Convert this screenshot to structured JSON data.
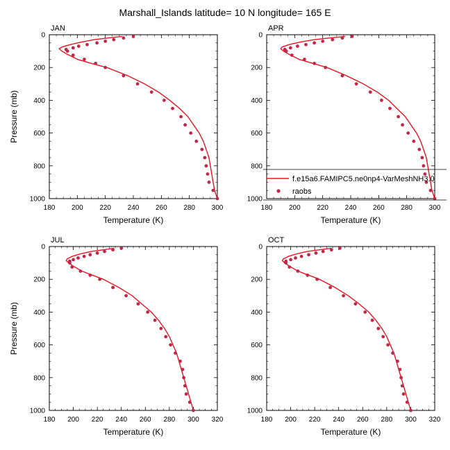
{
  "figure_title": "Marshall_Islands  latitude= 10 N longitude= 165 E",
  "legend": {
    "model_label": "f.e15a6.FAMIPC5.ne0np4-VarMeshNH3.0",
    "obs_label": "raobs"
  },
  "colors": {
    "model_line": "#e8141e",
    "obs_marker": "#c0284a"
  },
  "chart_data": [
    {
      "type": "line",
      "title": "JAN",
      "xlabel": "Temperature (K)",
      "ylabel": "Pressure (mb)",
      "xlim": [
        180,
        300
      ],
      "ylim": [
        1000,
        0
      ],
      "xticks": [
        180,
        200,
        220,
        240,
        260,
        280,
        300
      ],
      "yticks": [
        0,
        200,
        400,
        600,
        800,
        1000
      ],
      "series": [
        {
          "name": "f.e15a6.FAMIPC5.ne0np4-VarMeshNH3.0",
          "kind": "line",
          "points": [
            [
              232,
              10
            ],
            [
              222,
              20
            ],
            [
              212,
              30
            ],
            [
              203,
              45
            ],
            [
              195,
              60
            ],
            [
              189,
              75
            ],
            [
              187,
              85
            ],
            [
              189,
              100
            ],
            [
              193,
              120
            ],
            [
              200,
              150
            ],
            [
              210,
              175
            ],
            [
              221,
              200
            ],
            [
              236,
              250
            ],
            [
              248,
              300
            ],
            [
              258,
              350
            ],
            [
              266,
              400
            ],
            [
              273,
              450
            ],
            [
              279,
              500
            ],
            [
              283,
              550
            ],
            [
              287,
              600
            ],
            [
              290,
              650
            ],
            [
              292,
              700
            ],
            [
              294,
              750
            ],
            [
              296,
              850
            ],
            [
              297,
              900
            ],
            [
              298,
              950
            ],
            [
              300,
              1000
            ]
          ]
        },
        {
          "name": "raobs",
          "kind": "points",
          "points": [
            [
              240,
              10
            ],
            [
              233,
              20
            ],
            [
              226,
              30
            ],
            [
              220,
              40
            ],
            [
              214,
              50
            ],
            [
              207,
              60
            ],
            [
              201,
              70
            ],
            [
              197,
              80
            ],
            [
              192,
              90
            ],
            [
              193,
              100
            ],
            [
              197,
              125
            ],
            [
              205,
              150
            ],
            [
              213,
              175
            ],
            [
              220,
              200
            ],
            [
              233,
              250
            ],
            [
              243,
              300
            ],
            [
              253,
              350
            ],
            [
              262,
              400
            ],
            [
              268,
              450
            ],
            [
              274,
              500
            ],
            [
              277,
              550
            ],
            [
              281,
              600
            ],
            [
              285,
              650
            ],
            [
              289,
              700
            ],
            [
              291,
              750
            ],
            [
              292,
              800
            ],
            [
              293,
              850
            ],
            [
              294,
              900
            ],
            [
              297,
              950
            ],
            [
              300,
              1000
            ]
          ]
        }
      ]
    },
    {
      "type": "line",
      "title": "APR",
      "xlabel": "Temperature (K)",
      "ylabel": "",
      "xlim": [
        180,
        300
      ],
      "ylim": [
        1000,
        0
      ],
      "xticks": [
        180,
        200,
        220,
        240,
        260,
        280,
        300
      ],
      "yticks": [
        0,
        200,
        400,
        600,
        800,
        1000
      ],
      "series": [
        {
          "name": "f.e15a6.FAMIPC5.ne0np4-VarMeshNH3.0",
          "kind": "line",
          "points": [
            [
              236,
              10
            ],
            [
              225,
              20
            ],
            [
              214,
              30
            ],
            [
              204,
              45
            ],
            [
              196,
              60
            ],
            [
              191,
              75
            ],
            [
              190,
              85
            ],
            [
              192,
              100
            ],
            [
              196,
              120
            ],
            [
              203,
              150
            ],
            [
              213,
              175
            ],
            [
              223,
              200
            ],
            [
              237,
              250
            ],
            [
              249,
              300
            ],
            [
              259,
              350
            ],
            [
              267,
              400
            ],
            [
              273,
              450
            ],
            [
              279,
              500
            ],
            [
              283,
              550
            ],
            [
              287,
              600
            ],
            [
              290,
              650
            ],
            [
              292,
              700
            ],
            [
              294,
              750
            ],
            [
              296,
              850
            ],
            [
              297,
              900
            ],
            [
              298,
              950
            ],
            [
              300,
              1000
            ]
          ]
        },
        {
          "name": "raobs",
          "kind": "points",
          "points": [
            [
              241,
              10
            ],
            [
              234,
              20
            ],
            [
              227,
              30
            ],
            [
              220,
              40
            ],
            [
              214,
              50
            ],
            [
              208,
              60
            ],
            [
              202,
              70
            ],
            [
              197,
              80
            ],
            [
              193,
              90
            ],
            [
              194,
              100
            ],
            [
              198,
              125
            ],
            [
              207,
              150
            ],
            [
              214,
              175
            ],
            [
              222,
              200
            ],
            [
              234,
              250
            ],
            [
              244,
              300
            ],
            [
              254,
              350
            ],
            [
              262,
              400
            ],
            [
              268,
              450
            ],
            [
              274,
              500
            ],
            [
              277,
              550
            ],
            [
              281,
              600
            ],
            [
              285,
              650
            ],
            [
              289,
              700
            ],
            [
              291,
              750
            ],
            [
              292,
              800
            ],
            [
              293,
              850
            ],
            [
              294,
              900
            ],
            [
              297,
              950
            ],
            [
              300,
              1000
            ]
          ]
        }
      ]
    },
    {
      "type": "line",
      "title": "JUL",
      "xlabel": "Temperature (K)",
      "ylabel": "Pressure (mb)",
      "xlim": [
        180,
        320
      ],
      "ylim": [
        1000,
        0
      ],
      "xticks": [
        180,
        200,
        220,
        240,
        260,
        280,
        300,
        320
      ],
      "yticks": [
        0,
        200,
        400,
        600,
        800,
        1000
      ],
      "series": [
        {
          "name": "f.e15a6.FAMIPC5.ne0np4-VarMeshNH3.0",
          "kind": "line",
          "points": [
            [
              234,
              10
            ],
            [
              225,
              20
            ],
            [
              215,
              30
            ],
            [
              206,
              45
            ],
            [
              199,
              60
            ],
            [
              195,
              75
            ],
            [
              194,
              85
            ],
            [
              196,
              100
            ],
            [
              200,
              120
            ],
            [
              207,
              150
            ],
            [
              216,
              175
            ],
            [
              225,
              200
            ],
            [
              238,
              250
            ],
            [
              249,
              300
            ],
            [
              257,
              350
            ],
            [
              265,
              400
            ],
            [
              271,
              450
            ],
            [
              276,
              500
            ],
            [
              280,
              550
            ],
            [
              283,
              600
            ],
            [
              286,
              650
            ],
            [
              288,
              700
            ],
            [
              290,
              750
            ],
            [
              292,
              800
            ],
            [
              294,
              850
            ],
            [
              296,
              900
            ],
            [
              298,
              950
            ],
            [
              300,
              1000
            ]
          ]
        },
        {
          "name": "raobs",
          "kind": "points",
          "points": [
            [
              240,
              10
            ],
            [
              233,
              20
            ],
            [
              226,
              30
            ],
            [
              220,
              40
            ],
            [
              214,
              50
            ],
            [
              209,
              60
            ],
            [
              204,
              70
            ],
            [
              200,
              80
            ],
            [
              197,
              90
            ],
            [
              197,
              100
            ],
            [
              199,
              125
            ],
            [
              206,
              150
            ],
            [
              214,
              175
            ],
            [
              222,
              200
            ],
            [
              233,
              250
            ],
            [
              244,
              300
            ],
            [
              254,
              350
            ],
            [
              262,
              400
            ],
            [
              268,
              450
            ],
            [
              273,
              500
            ],
            [
              277,
              550
            ],
            [
              281,
              600
            ],
            [
              285,
              650
            ],
            [
              289,
              700
            ],
            [
              291,
              750
            ],
            [
              292,
              800
            ],
            [
              293,
              850
            ],
            [
              294,
              900
            ],
            [
              297,
              950
            ],
            [
              300,
              1000
            ]
          ]
        }
      ]
    },
    {
      "type": "line",
      "title": "OCT",
      "xlabel": "Temperature (K)",
      "ylabel": "",
      "xlim": [
        180,
        320
      ],
      "ylim": [
        1000,
        0
      ],
      "xticks": [
        180,
        200,
        220,
        240,
        260,
        280,
        300,
        320
      ],
      "yticks": [
        0,
        200,
        400,
        600,
        800,
        1000
      ],
      "series": [
        {
          "name": "f.e15a6.FAMIPC5.ne0np4-VarMeshNH3.0",
          "kind": "line",
          "points": [
            [
              234,
              10
            ],
            [
              224,
              20
            ],
            [
              214,
              30
            ],
            [
              205,
              45
            ],
            [
              198,
              60
            ],
            [
              194,
              75
            ],
            [
              193,
              85
            ],
            [
              195,
              100
            ],
            [
              199,
              120
            ],
            [
              206,
              150
            ],
            [
              215,
              175
            ],
            [
              224,
              200
            ],
            [
              237,
              250
            ],
            [
              248,
              300
            ],
            [
              257,
              350
            ],
            [
              265,
              400
            ],
            [
              271,
              450
            ],
            [
              276,
              500
            ],
            [
              280,
              550
            ],
            [
              283,
              600
            ],
            [
              286,
              650
            ],
            [
              288,
              700
            ],
            [
              290,
              750
            ],
            [
              292,
              800
            ],
            [
              294,
              850
            ],
            [
              296,
              900
            ],
            [
              298,
              950
            ],
            [
              300,
              1000
            ]
          ]
        },
        {
          "name": "raobs",
          "kind": "points",
          "points": [
            [
              241,
              10
            ],
            [
              234,
              20
            ],
            [
              227,
              30
            ],
            [
              221,
              40
            ],
            [
              215,
              50
            ],
            [
              209,
              60
            ],
            [
              204,
              70
            ],
            [
              200,
              80
            ],
            [
              196,
              90
            ],
            [
              196,
              100
            ],
            [
              199,
              125
            ],
            [
              206,
              150
            ],
            [
              214,
              175
            ],
            [
              222,
              200
            ],
            [
              233,
              250
            ],
            [
              244,
              300
            ],
            [
              254,
              350
            ],
            [
              262,
              400
            ],
            [
              268,
              450
            ],
            [
              273,
              500
            ],
            [
              277,
              550
            ],
            [
              281,
              600
            ],
            [
              285,
              650
            ],
            [
              289,
              700
            ],
            [
              291,
              750
            ],
            [
              292,
              800
            ],
            [
              293,
              850
            ],
            [
              294,
              900
            ],
            [
              297,
              950
            ],
            [
              300,
              1000
            ]
          ]
        }
      ]
    }
  ]
}
